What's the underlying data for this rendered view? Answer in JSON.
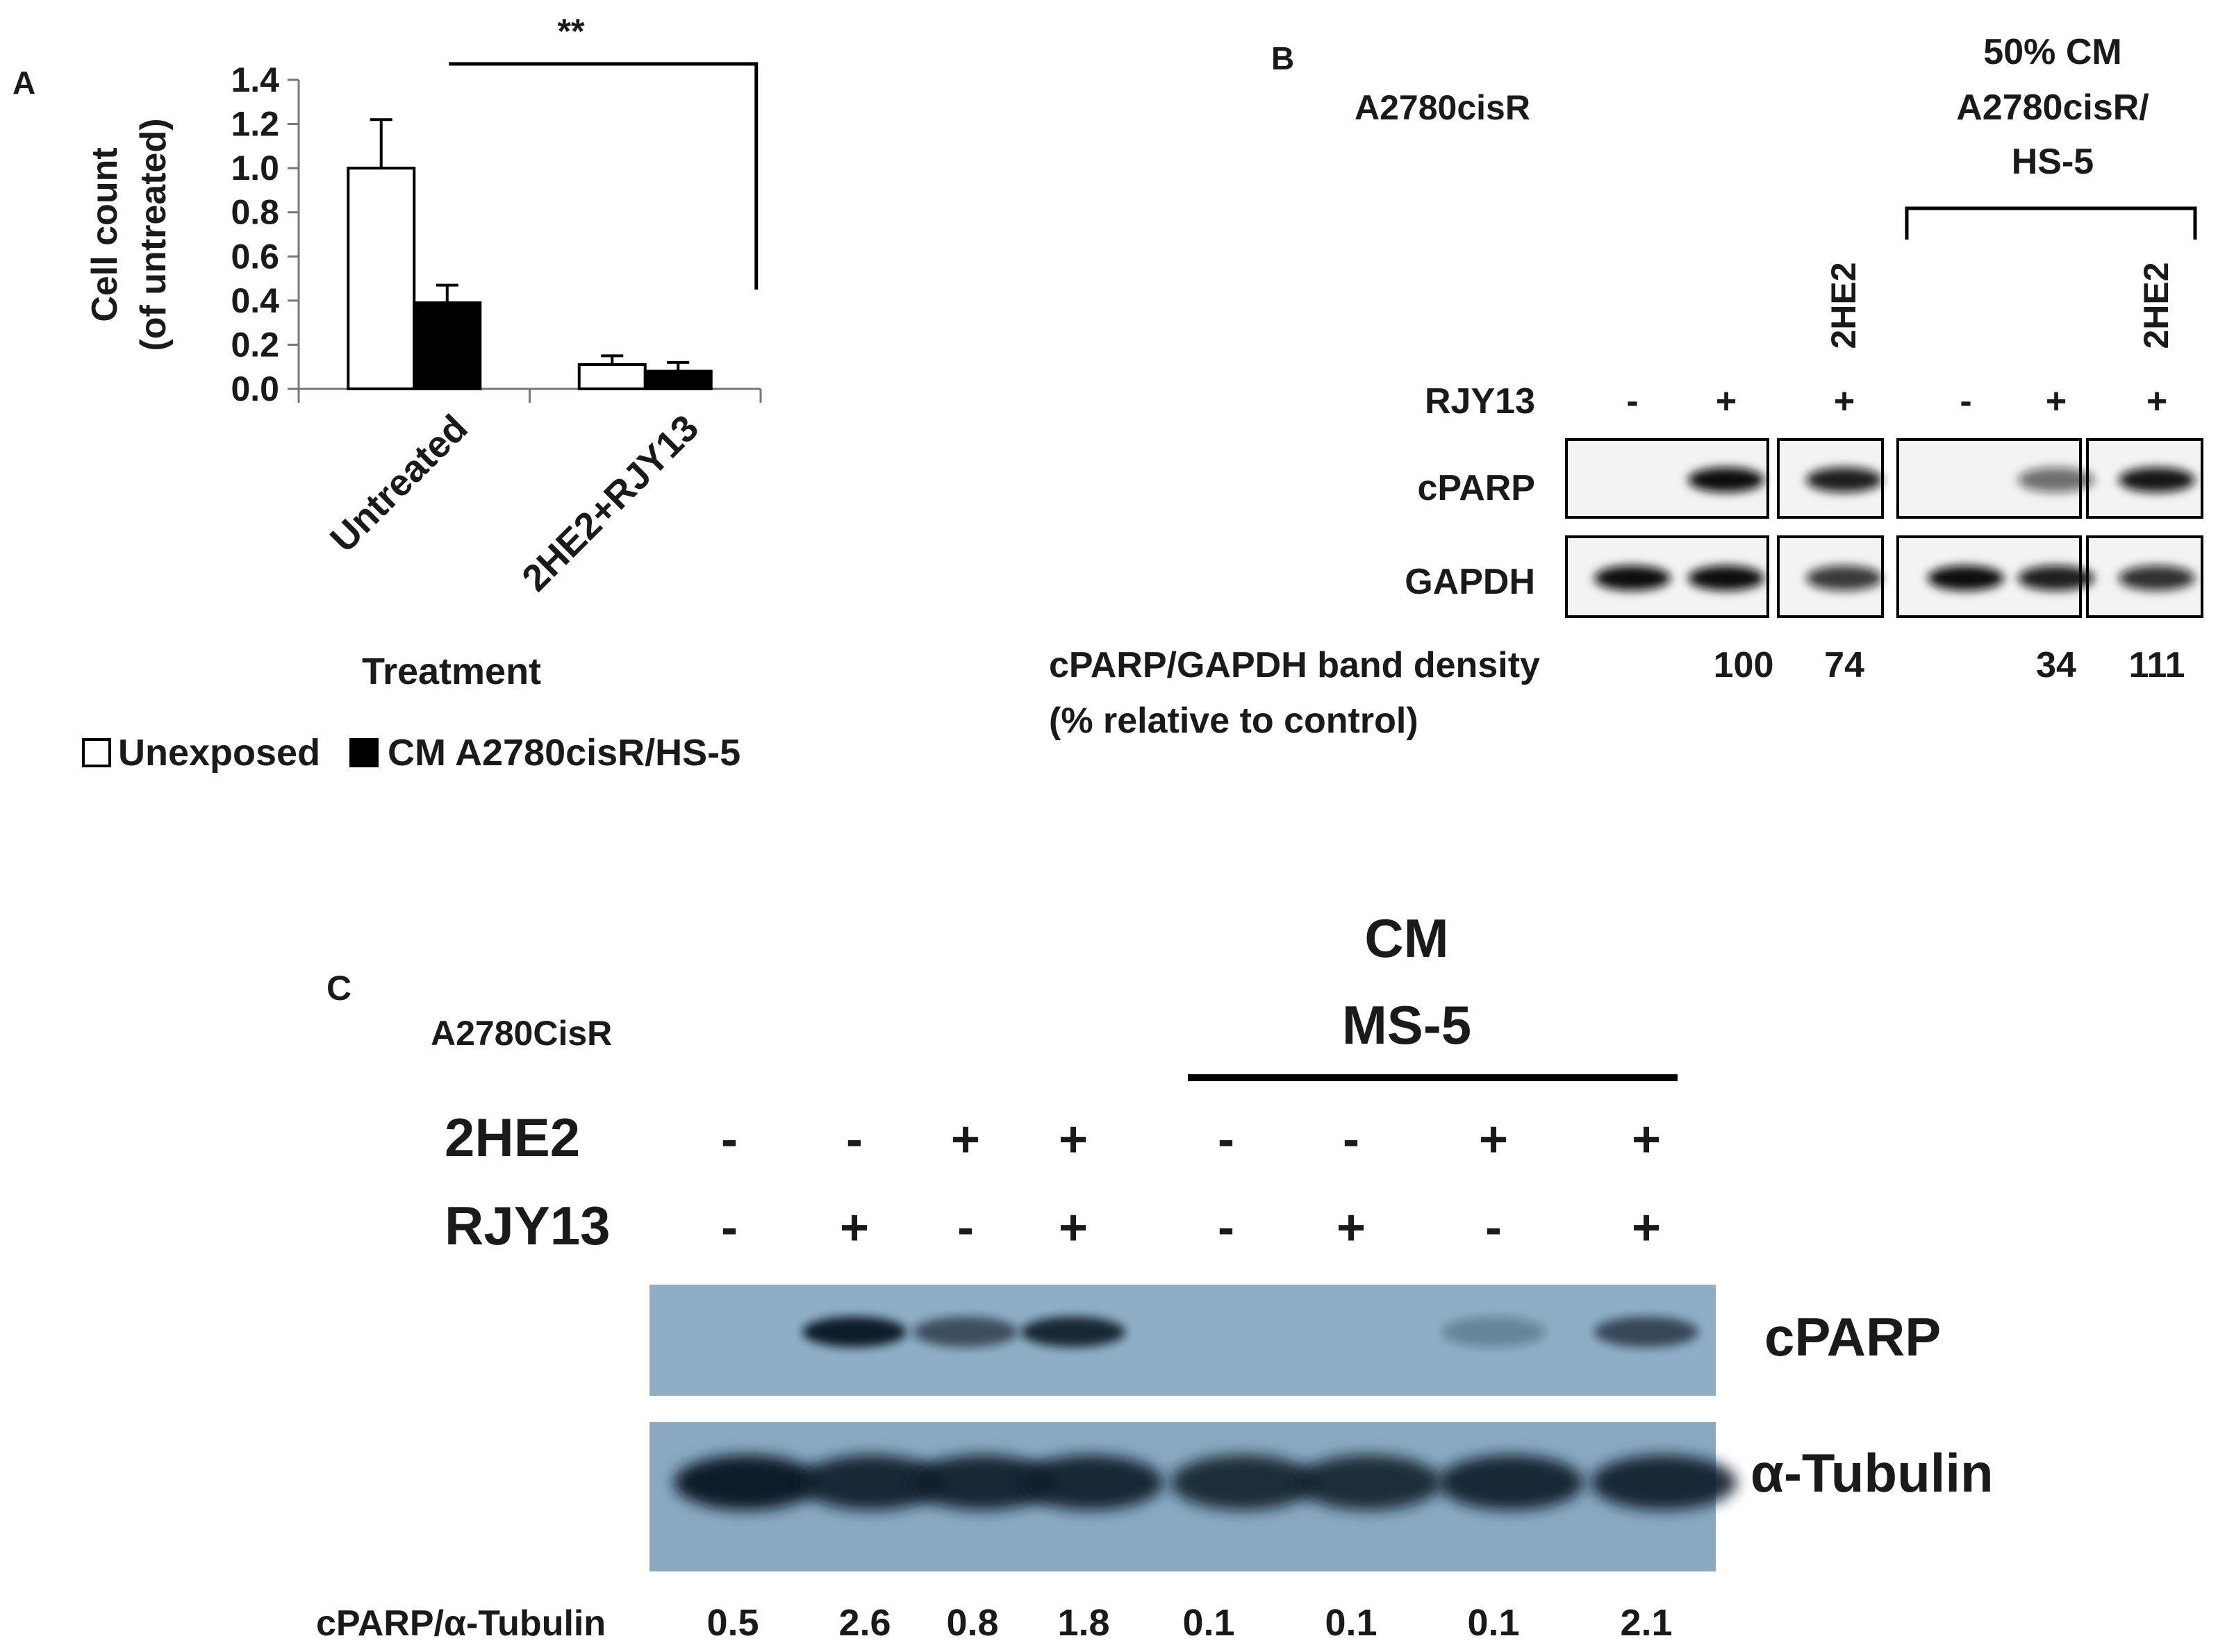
{
  "panel_a": {
    "letter": "A",
    "significance": "**",
    "treatment_label": "Treatment",
    "legend": [
      {
        "label": "Unexposed",
        "color": "#ffffff"
      },
      {
        "label": "CM A2780cisR/HS-5",
        "color": "#000000"
      }
    ]
  },
  "chart_data": {
    "type": "bar",
    "categories": [
      "Untreated",
      "2HE2+RJY13"
    ],
    "series": [
      {
        "name": "Unexposed",
        "values": [
          1.0,
          0.11
        ],
        "errors": [
          0.22,
          0.04
        ],
        "color": "#ffffff"
      },
      {
        "name": "CM A2780cisR/HS-5",
        "values": [
          0.39,
          0.08
        ],
        "errors": [
          0.08,
          0.04
        ],
        "color": "#000000"
      }
    ],
    "ylabel_line1": "Cell count",
    "ylabel_line2": "(of untreated)",
    "xlabel": "Treatment",
    "ylim": [
      0,
      1.4
    ],
    "yticks": [
      "0.0",
      "0.2",
      "0.4",
      "0.6",
      "0.8",
      "1.0",
      "1.2",
      "1.4"
    ],
    "grid": false,
    "legend_position": "bottom"
  },
  "panel_b": {
    "letter": "B",
    "cell_line": "A2780cisR",
    "group_label_lines": [
      "50% CM",
      "A2780cisR/",
      "HS-5"
    ],
    "lane_labels": [
      "",
      "",
      "2HE2",
      "",
      "",
      "2HE2"
    ],
    "rjy13_label": "RJY13",
    "rjy13_signs": [
      "-",
      "+",
      "+",
      "-",
      "+",
      "+"
    ],
    "blot_labels": [
      "cPARP",
      "GAPDH"
    ],
    "cparp_intensity": [
      0.0,
      1.0,
      0.9,
      0.0,
      0.45,
      0.95
    ],
    "gapdh_intensity": [
      1.0,
      1.0,
      0.75,
      1.0,
      0.9,
      0.8
    ],
    "density_label_lines": [
      "cPARP/GAPDH band density",
      "(% relative to control)"
    ],
    "density_values": [
      "",
      "100",
      "74",
      "",
      "34",
      "111"
    ]
  },
  "panel_c": {
    "letter": "C",
    "cell_line": "A2780CisR",
    "group_label_lines": [
      "CM",
      "MS-5"
    ],
    "row_labels": [
      "2HE2",
      "RJY13"
    ],
    "he2_signs": [
      "-",
      "-",
      "+",
      "+",
      "-",
      "-",
      "+",
      "+"
    ],
    "rjy13_signs": [
      "-",
      "+",
      "-",
      "+",
      "-",
      "+",
      "-",
      "+"
    ],
    "blot_labels": [
      "cPARP",
      "α-Tubulin"
    ],
    "cparp_intensity": [
      0.0,
      1.0,
      0.55,
      0.9,
      0.0,
      0.0,
      0.05,
      0.6
    ],
    "tubulin_intensity": [
      1.0,
      0.9,
      0.9,
      0.9,
      0.85,
      0.85,
      0.9,
      0.9
    ],
    "ratio_label": "cPARP/α-Tubulin",
    "ratio_values": [
      "0.5",
      "2.6",
      "0.8",
      "1.8",
      "0.1",
      "0.1",
      "0.1",
      "2.1"
    ]
  }
}
